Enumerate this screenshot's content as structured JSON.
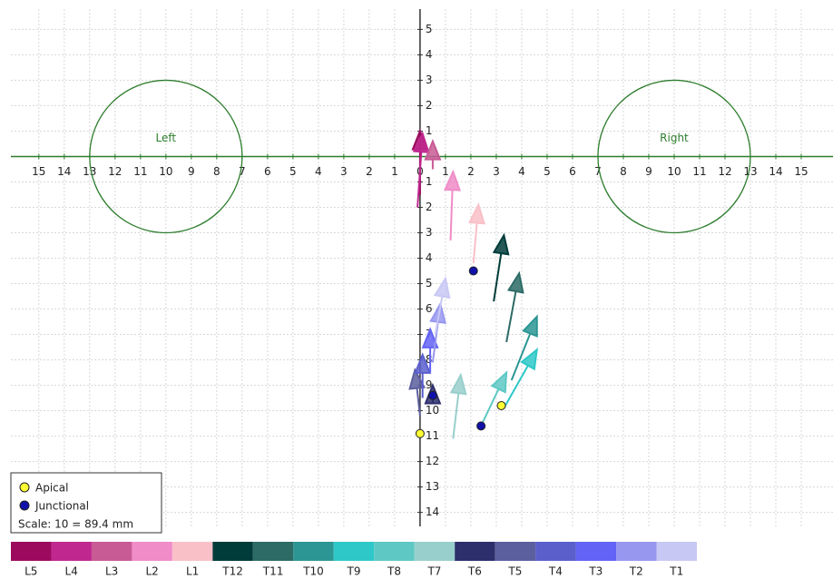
{
  "chart_data": {
    "type": "vector",
    "xlim": [
      -16.1,
      16.25
    ],
    "ylim": [
      -14.55,
      5.8
    ],
    "grid": true,
    "xticks": [
      {
        "value": -15,
        "label": "15"
      },
      {
        "value": -14,
        "label": "14"
      },
      {
        "value": -13,
        "label": "13"
      },
      {
        "value": -12,
        "label": "12"
      },
      {
        "value": -11,
        "label": "11"
      },
      {
        "value": -10,
        "label": "10"
      },
      {
        "value": -9,
        "label": "9"
      },
      {
        "value": -8,
        "label": "8"
      },
      {
        "value": -7,
        "label": "7"
      },
      {
        "value": -6,
        "label": "6"
      },
      {
        "value": -5,
        "label": "5"
      },
      {
        "value": -4,
        "label": "4"
      },
      {
        "value": -3,
        "label": "3"
      },
      {
        "value": -2,
        "label": "2"
      },
      {
        "value": -1,
        "label": "1"
      },
      0,
      1,
      2,
      3,
      4,
      5,
      6,
      7,
      8,
      9,
      10,
      11,
      12,
      13,
      14,
      15
    ],
    "yticks": [
      5,
      4,
      3,
      2,
      1,
      {
        "value": -1,
        "label": "1"
      },
      {
        "value": -2,
        "label": "2"
      },
      {
        "value": -3,
        "label": "3"
      },
      {
        "value": -4,
        "label": "4"
      },
      {
        "value": -5,
        "label": "5"
      },
      {
        "value": -6,
        "label": "6"
      },
      {
        "value": -7,
        "label": "7"
      },
      {
        "value": -8,
        "label": "8"
      },
      {
        "value": -9,
        "label": "9"
      },
      {
        "value": -10,
        "label": "10"
      },
      {
        "value": -11,
        "label": "11"
      },
      {
        "value": -12,
        "label": "12"
      },
      {
        "value": -13,
        "label": "13"
      },
      {
        "value": -14,
        "label": "14"
      }
    ],
    "circles": [
      {
        "label": "Left",
        "x": -10,
        "y": 0,
        "r": 3,
        "color": "#2e7d2e"
      },
      {
        "label": "Right",
        "x": 10,
        "y": 0,
        "r": 3,
        "color": "#2e7d2e"
      }
    ],
    "vectors": [
      {
        "name": "L5",
        "color": "#9c0a5e",
        "x": [
          0,
          0
        ],
        "y": [
          -1.5,
          1
        ]
      },
      {
        "name": "L4",
        "color": "#c0288f",
        "x": [
          -0.1,
          0.1
        ],
        "y": [
          -2,
          0.9
        ]
      },
      {
        "name": "L3",
        "color": "#c85a95",
        "x": [
          0.5,
          0.5
        ],
        "y": [
          -0.5,
          0.6
        ]
      },
      {
        "name": "L2",
        "color": "#f08cc8",
        "x": [
          1.2,
          1.3
        ],
        "y": [
          -3.3,
          -0.6
        ]
      },
      {
        "name": "L1",
        "color": "#f9c0c8",
        "x": [
          2.1,
          2.3
        ],
        "y": [
          -4.2,
          -1.9
        ]
      },
      {
        "name": "T12",
        "color": "#003c3a",
        "x": [
          2.9,
          3.3
        ],
        "y": [
          -5.7,
          -3.1
        ]
      },
      {
        "name": "T11",
        "color": "#2c6b66",
        "x": [
          3.4,
          3.9
        ],
        "y": [
          -7.3,
          -4.6
        ]
      },
      {
        "name": "T10",
        "color": "#2b9693",
        "x": [
          3.6,
          4.6
        ],
        "y": [
          -8.8,
          -6.3
        ]
      },
      {
        "name": "T9",
        "color": "#2ec8c8",
        "x": [
          3.3,
          4.6
        ],
        "y": [
          -9.9,
          -7.6
        ]
      },
      {
        "name": "T8",
        "color": "#5ec8c4",
        "x": [
          2.4,
          3.4
        ],
        "y": [
          -10.6,
          -8.5
        ]
      },
      {
        "name": "T7",
        "color": "#98cfcc",
        "x": [
          1.3,
          1.6
        ],
        "y": [
          -11.1,
          -8.6
        ]
      },
      {
        "name": "T6",
        "color": "#2d2f6c",
        "x": [
          0.5,
          0.5
        ],
        "y": [
          -9.5,
          -9.0
        ]
      },
      {
        "name": "T5",
        "color": "#5c5f9e",
        "x": [
          0,
          -0.2
        ],
        "y": [
          -10.2,
          -8.4
        ]
      },
      {
        "name": "T4",
        "color": "#5a5fcc",
        "x": [
          0.1,
          0.1
        ],
        "y": [
          -9.5,
          -7.8
        ]
      },
      {
        "name": "T3",
        "color": "#6363f5",
        "x": [
          0.4,
          0.4
        ],
        "y": [
          -8.5,
          -6.8
        ]
      },
      {
        "name": "T2",
        "color": "#9797f0",
        "x": [
          0.5,
          0.8
        ],
        "y": [
          -8.1,
          -5.8
        ]
      },
      {
        "name": "T1",
        "color": "#c8c8f5",
        "x": [
          0.6,
          1
        ],
        "y": [
          -7,
          -4.8
        ]
      }
    ],
    "points": [
      {
        "name": "Apical",
        "color": "#ffff33",
        "x": [
          0,
          3.2
        ],
        "y": [
          -10.9,
          -9.8
        ]
      },
      {
        "name": "Junctional",
        "color": "#1111aa",
        "x": [
          2.1,
          2.4,
          0.5
        ],
        "y": [
          -4.5,
          -10.6,
          -9.4
        ]
      }
    ],
    "scale_note": "Scale: 10 = 89.4 mm"
  }
}
